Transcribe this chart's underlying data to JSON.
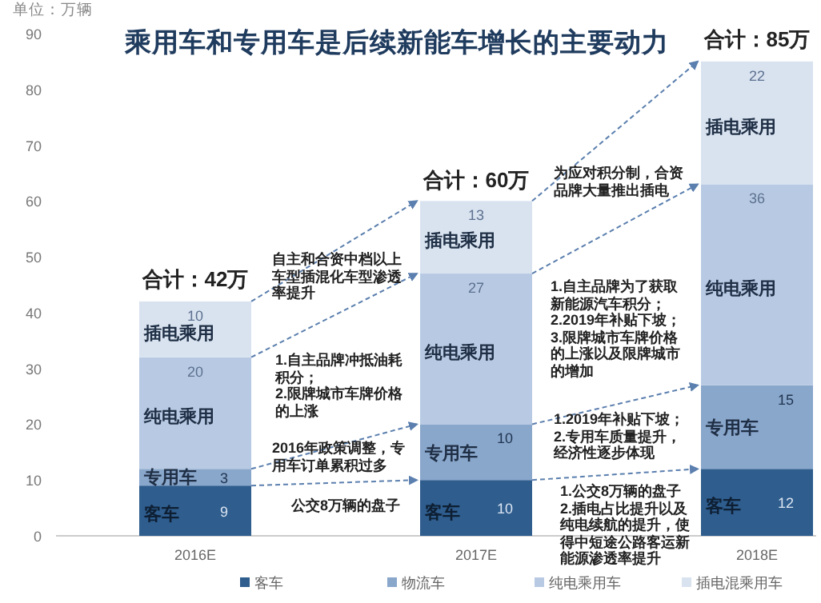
{
  "chart_data": {
    "type": "bar",
    "stacked": true,
    "title": "乘用车和专用车是后续新能车增长的主要动力",
    "ylabel": "单位：万辆",
    "categories": [
      "2016E",
      "2017E",
      "2018E"
    ],
    "series": [
      {
        "name": "客车",
        "color": "#2e5d8e",
        "values": [
          9,
          10,
          12
        ]
      },
      {
        "name": "物流车",
        "color": "#89a6cb",
        "values": [
          3,
          10,
          15
        ]
      },
      {
        "name": "纯电乘用车",
        "color": "#b8cae3",
        "values": [
          20,
          27,
          36
        ]
      },
      {
        "name": "插电混乘用车",
        "color": "#d9e3f0",
        "values": [
          10,
          13,
          22
        ]
      }
    ],
    "ylim": [
      0,
      90
    ],
    "yticks": [
      0,
      10,
      20,
      30,
      40,
      50,
      60,
      70,
      80,
      90
    ],
    "data_labels": true,
    "totals": [
      "合计：42万",
      "合计：60万",
      "合计：85万"
    ],
    "legend": "bottom",
    "grid": false,
    "annotations": [
      "客车",
      "专用车",
      "纯电乘用",
      "插电乘用",
      "客车",
      "专用车",
      "纯电乘用",
      "插电乘用",
      "客车",
      "专用车",
      "纯电乘用",
      "插电乘用",
      "自主和合资中档以上车型插混化车型渗透率提升",
      "1.自主品牌冲抵油耗积分；",
      "2.限牌城市车牌价格的上涨",
      "2016年政策调整，专用车订单累积过多",
      "公交8万辆的盘子",
      "为应对积分制，合资品牌大量推出插电",
      "1.自主品牌为了获取新能源汽车积分；",
      "2.2019年补贴下坡；",
      "3.限牌城市车牌价格的上涨以及限牌城市的增加",
      "1.2019年补贴下坡；",
      "2.专用车质量提升，经济性逐步体现",
      "1.公交8万辆的盘子",
      "2.插电占比提升以及纯电续航的提升，使得中短途公路客运新能源渗透率提升"
    ]
  }
}
